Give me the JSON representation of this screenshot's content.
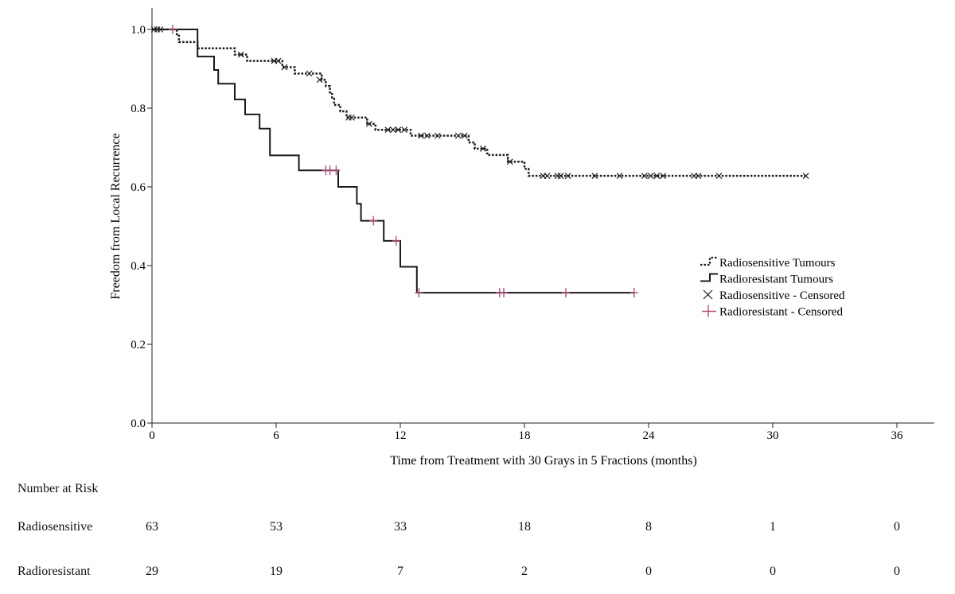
{
  "chart_data": {
    "type": "line",
    "title": "",
    "xlabel": "Time from Treatment with 30 Grays in 5 Fractions (months)",
    "ylabel": "Freedom from Local Recurrence",
    "xlim": [
      0,
      37
    ],
    "ylim": [
      0,
      1.05
    ],
    "xticks": [
      0,
      6,
      12,
      18,
      24,
      30,
      36
    ],
    "xtick_labels": [
      "0",
      "6",
      "12",
      "18",
      "24",
      "30",
      "36"
    ],
    "yticks": [
      0,
      0.2,
      0.4,
      0.6,
      0.8,
      1.0
    ],
    "ytick_labels": [
      "0.0",
      "0.2",
      "0.4",
      "0.6",
      "0.8",
      "1.0"
    ],
    "grid": false,
    "legend_position": "right",
    "legend": [
      {
        "label": "Radiosensitive Tumours",
        "symbol": "dotted-step"
      },
      {
        "label": "Radioresistant Tumours",
        "symbol": "solid-step"
      },
      {
        "label": "Radiosensitive - Censored",
        "symbol": "x"
      },
      {
        "label": "Radioresistant - Censored",
        "symbol": "plus"
      }
    ],
    "series": [
      {
        "name": "Radiosensitive Tumours",
        "style": "dotted",
        "color": "#1a1a1a",
        "steps": [
          [
            0,
            1.0
          ],
          [
            1.2,
            0.984
          ],
          [
            1.3,
            0.968
          ],
          [
            2.2,
            0.952
          ],
          [
            4.0,
            0.936
          ],
          [
            4.6,
            0.92
          ],
          [
            6.3,
            0.904
          ],
          [
            6.9,
            0.888
          ],
          [
            8.2,
            0.872
          ],
          [
            8.4,
            0.856
          ],
          [
            8.6,
            0.84
          ],
          [
            8.7,
            0.824
          ],
          [
            8.8,
            0.808
          ],
          [
            9.1,
            0.792
          ],
          [
            9.4,
            0.776
          ],
          [
            10.4,
            0.76
          ],
          [
            10.8,
            0.745
          ],
          [
            12.5,
            0.73
          ],
          [
            15.3,
            0.713
          ],
          [
            15.6,
            0.697
          ],
          [
            16.2,
            0.681
          ],
          [
            17.2,
            0.664
          ],
          [
            18.0,
            0.646
          ],
          [
            18.2,
            0.628
          ],
          [
            31.6,
            0.628
          ]
        ],
        "censored": [
          [
            0.1,
            1.0
          ],
          [
            0.25,
            1.0
          ],
          [
            0.4,
            1.0
          ],
          [
            4.3,
            0.936
          ],
          [
            5.9,
            0.92
          ],
          [
            6.1,
            0.92
          ],
          [
            6.4,
            0.904
          ],
          [
            7.6,
            0.888
          ],
          [
            8.1,
            0.872
          ],
          [
            9.5,
            0.776
          ],
          [
            9.65,
            0.776
          ],
          [
            10.5,
            0.76
          ],
          [
            11.4,
            0.745
          ],
          [
            11.65,
            0.745
          ],
          [
            11.9,
            0.745
          ],
          [
            12.2,
            0.745
          ],
          [
            13.0,
            0.73
          ],
          [
            13.3,
            0.73
          ],
          [
            13.8,
            0.73
          ],
          [
            14.8,
            0.73
          ],
          [
            15.1,
            0.73
          ],
          [
            16.0,
            0.697
          ],
          [
            17.3,
            0.664
          ],
          [
            18.9,
            0.628
          ],
          [
            19.1,
            0.628
          ],
          [
            19.6,
            0.628
          ],
          [
            19.75,
            0.628
          ],
          [
            20.1,
            0.628
          ],
          [
            21.4,
            0.628
          ],
          [
            22.6,
            0.628
          ],
          [
            23.8,
            0.628
          ],
          [
            24.1,
            0.628
          ],
          [
            24.4,
            0.628
          ],
          [
            24.7,
            0.628
          ],
          [
            26.2,
            0.628
          ],
          [
            26.4,
            0.628
          ],
          [
            27.4,
            0.628
          ],
          [
            31.6,
            0.628
          ]
        ]
      },
      {
        "name": "Radioresistant Tumours",
        "style": "solid",
        "color": "#1a1a1a",
        "steps": [
          [
            0,
            1.0
          ],
          [
            2.2,
            0.931
          ],
          [
            3.0,
            0.897
          ],
          [
            3.2,
            0.862
          ],
          [
            4.0,
            0.822
          ],
          [
            4.5,
            0.784
          ],
          [
            5.2,
            0.748
          ],
          [
            5.7,
            0.68
          ],
          [
            7.1,
            0.642
          ],
          [
            9.0,
            0.6
          ],
          [
            9.9,
            0.557
          ],
          [
            10.1,
            0.514
          ],
          [
            11.2,
            0.463
          ],
          [
            12.0,
            0.397
          ],
          [
            12.8,
            0.331
          ],
          [
            23.3,
            0.331
          ]
        ],
        "censored": [
          [
            1.0,
            1.0
          ],
          [
            8.4,
            0.642
          ],
          [
            8.6,
            0.642
          ],
          [
            8.9,
            0.642
          ],
          [
            10.7,
            0.514
          ],
          [
            11.8,
            0.463
          ],
          [
            12.9,
            0.331
          ],
          [
            16.8,
            0.331
          ],
          [
            17.0,
            0.331
          ],
          [
            20.0,
            0.331
          ],
          [
            23.3,
            0.331
          ]
        ],
        "censor_color": "#b04d7a"
      }
    ],
    "number_at_risk": {
      "title": "Number at Risk",
      "times": [
        0,
        6,
        12,
        18,
        24,
        30,
        36
      ],
      "rows": [
        {
          "label": "Radiosensitive",
          "counts": [
            "63",
            "53",
            "33",
            "18",
            "8",
            "1",
            "0"
          ]
        },
        {
          "label": "Radioresistant",
          "counts": [
            "29",
            "19",
            "7",
            "2",
            "0",
            "0",
            "0"
          ]
        }
      ]
    }
  }
}
